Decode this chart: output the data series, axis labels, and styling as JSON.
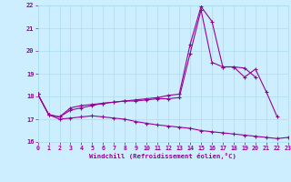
{
  "x": [
    0,
    1,
    2,
    3,
    4,
    5,
    6,
    7,
    8,
    9,
    10,
    11,
    12,
    13,
    14,
    15,
    16,
    17,
    18,
    19,
    20,
    21,
    22,
    23
  ],
  "line1": [
    18.1,
    17.2,
    17.1,
    17.4,
    17.5,
    17.6,
    17.7,
    17.75,
    17.8,
    17.8,
    17.85,
    17.9,
    17.9,
    17.95,
    19.9,
    21.8,
    19.5,
    19.3,
    19.3,
    18.85,
    19.2,
    18.2,
    17.1,
    null
  ],
  "line2": [
    18.1,
    17.2,
    17.1,
    17.5,
    17.6,
    17.65,
    17.7,
    17.75,
    17.8,
    17.85,
    17.9,
    17.95,
    18.05,
    18.1,
    20.3,
    21.95,
    21.3,
    19.3,
    19.3,
    19.25,
    18.85,
    null,
    null,
    null
  ],
  "line3": [
    18.1,
    17.2,
    17.0,
    17.05,
    17.1,
    17.15,
    17.1,
    17.05,
    17.0,
    16.9,
    16.82,
    16.75,
    16.7,
    16.65,
    16.6,
    16.5,
    16.45,
    16.4,
    16.35,
    16.3,
    16.25,
    16.2,
    16.15,
    16.2
  ],
  "bg_color": "#cceeff",
  "line_color": "#990099",
  "grid_color": "#aaddee",
  "xlabel": "Windchill (Refroidissement éolien,°C)",
  "ylim": [
    16,
    22
  ],
  "xlim": [
    0,
    23
  ],
  "yticks": [
    16,
    17,
    18,
    19,
    20,
    21,
    22
  ],
  "xticks": [
    0,
    1,
    2,
    3,
    4,
    5,
    6,
    7,
    8,
    9,
    10,
    11,
    12,
    13,
    14,
    15,
    16,
    17,
    18,
    19,
    20,
    21,
    22,
    23
  ],
  "figsize": [
    3.2,
    2.0
  ],
  "dpi": 100
}
